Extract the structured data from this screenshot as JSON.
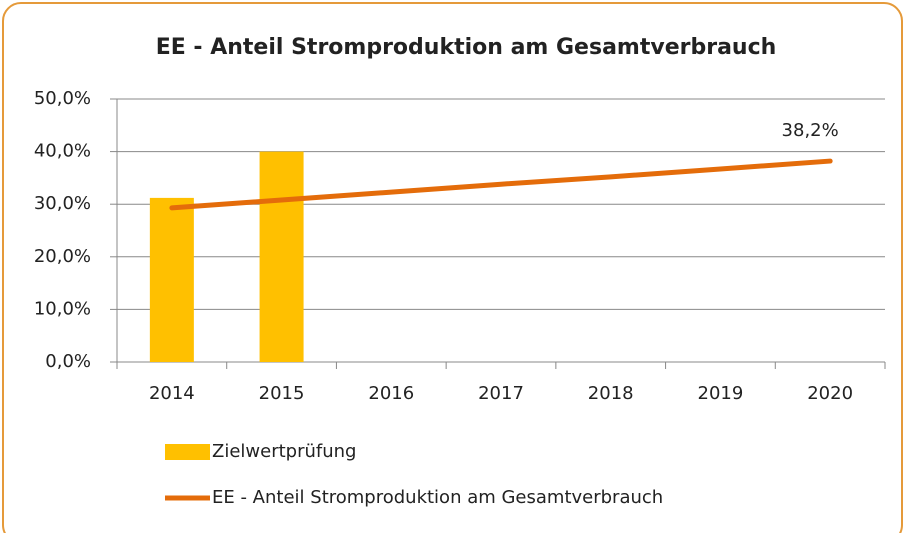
{
  "chart_data": {
    "type": "bar",
    "title": "EE - Anteil Stromproduktion am Gesamtverbrauch",
    "categories": [
      "2014",
      "2015",
      "2016",
      "2017",
      "2018",
      "2019",
      "2020"
    ],
    "series": [
      {
        "name": "Zielwertprüfung",
        "type": "bar",
        "color": "#ffc000",
        "values": [
          31.2,
          40.0,
          null,
          null,
          null,
          null,
          null
        ]
      },
      {
        "name": "EE - Anteil Stromproduktion am Gesamtverbrauch",
        "type": "line",
        "color": "#e46c0a",
        "values": [
          29.3,
          30.8,
          32.3,
          33.8,
          35.2,
          36.7,
          38.2
        ],
        "value_labels": [
          null,
          null,
          null,
          null,
          null,
          null,
          "38,2%"
        ]
      }
    ],
    "ylim": [
      0,
      50
    ],
    "yticks": [
      {
        "value": 0,
        "label": "0,0%"
      },
      {
        "value": 10,
        "label": "10,0%"
      },
      {
        "value": 20,
        "label": "20,0%"
      },
      {
        "value": 30,
        "label": "30,0%"
      },
      {
        "value": 40,
        "label": "40,0%"
      },
      {
        "value": 50,
        "label": "50,0%"
      }
    ],
    "grid": true,
    "legend": "bottom"
  }
}
